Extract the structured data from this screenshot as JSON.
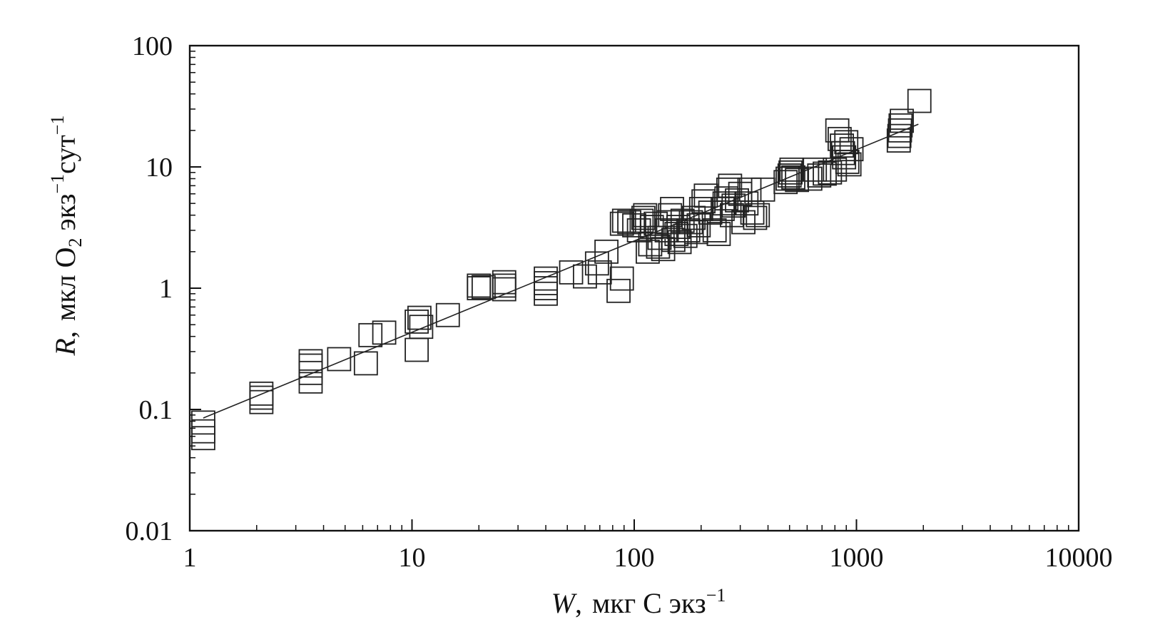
{
  "chart_data": {
    "type": "scatter",
    "xscale": "log",
    "yscale": "log",
    "xlim": [
      1,
      10000
    ],
    "ylim": [
      0.01,
      100
    ],
    "grid": false,
    "legend": "none",
    "x_ticks": [
      1,
      10,
      100,
      1000,
      10000
    ],
    "x_tick_labels": [
      "1",
      "10",
      "100",
      "1000",
      "10000"
    ],
    "y_ticks": [
      0.01,
      0.1,
      1,
      10,
      100
    ],
    "y_tick_labels": [
      "0.01",
      "0.1",
      "1",
      "10",
      "100"
    ],
    "xlabel": {
      "var": "W",
      "sep": ",",
      "text": "мкг С экз",
      "sup": "−1"
    },
    "ylabel": {
      "var": "R",
      "sep": ",",
      "t1": "мкл О",
      "sub": "2",
      "t2": " экз",
      "sup1": "−1",
      "t3": "сут",
      "sup2": "−1"
    },
    "marker": "open-square",
    "marker_color": "#222222",
    "fit_line": {
      "x": [
        1.15,
        1900
      ],
      "y": [
        0.085,
        22.5
      ],
      "color": "#222222"
    },
    "points": [
      [
        1.15,
        0.058
      ],
      [
        1.15,
        0.066
      ],
      [
        1.15,
        0.078
      ],
      [
        2.1,
        0.115
      ],
      [
        2.1,
        0.125
      ],
      [
        2.1,
        0.135
      ],
      [
        3.5,
        0.17
      ],
      [
        3.5,
        0.2
      ],
      [
        3.5,
        0.23
      ],
      [
        3.5,
        0.25
      ],
      [
        4.7,
        0.26
      ],
      [
        6.2,
        0.24
      ],
      [
        6.5,
        0.41
      ],
      [
        7.5,
        0.43
      ],
      [
        10.5,
        0.31
      ],
      [
        10.5,
        0.53
      ],
      [
        10.8,
        0.57
      ],
      [
        11,
        0.48
      ],
      [
        14.5,
        0.6
      ],
      [
        20,
        1.0
      ],
      [
        20,
        1.05
      ],
      [
        21,
        1.02
      ],
      [
        26,
        0.98
      ],
      [
        26,
        1.05
      ],
      [
        26,
        1.12
      ],
      [
        40,
        0.9
      ],
      [
        40,
        1.0
      ],
      [
        40,
        1.1
      ],
      [
        40,
        1.2
      ],
      [
        52,
        1.35
      ],
      [
        60,
        1.25
      ],
      [
        68,
        1.6
      ],
      [
        70,
        1.35
      ],
      [
        75,
        2.0
      ],
      [
        85,
        0.95
      ],
      [
        88,
        1.2
      ],
      [
        88,
        3.4
      ],
      [
        90,
        3.6
      ],
      [
        95,
        3.5
      ],
      [
        100,
        3.3
      ],
      [
        105,
        3.0
      ],
      [
        108,
        3.6
      ],
      [
        110,
        3.8
      ],
      [
        112,
        4.0
      ],
      [
        115,
        2.0
      ],
      [
        118,
        2.3
      ],
      [
        120,
        3.2
      ],
      [
        125,
        3.4
      ],
      [
        128,
        2.2
      ],
      [
        130,
        2.6
      ],
      [
        135,
        2.1
      ],
      [
        140,
        3.0
      ],
      [
        142,
        3.5
      ],
      [
        145,
        4.0
      ],
      [
        148,
        4.5
      ],
      [
        150,
        2.5
      ],
      [
        155,
        2.8
      ],
      [
        158,
        3.2
      ],
      [
        160,
        2.4
      ],
      [
        165,
        3.6
      ],
      [
        170,
        2.7
      ],
      [
        175,
        3.0
      ],
      [
        180,
        3.5
      ],
      [
        185,
        3.8
      ],
      [
        190,
        2.9
      ],
      [
        195,
        3.3
      ],
      [
        200,
        4.5
      ],
      [
        205,
        5.2
      ],
      [
        210,
        5.8
      ],
      [
        220,
        4.2
      ],
      [
        230,
        3.0
      ],
      [
        240,
        2.8
      ],
      [
        250,
        4.5
      ],
      [
        255,
        5.0
      ],
      [
        260,
        5.5
      ],
      [
        265,
        6.5
      ],
      [
        270,
        7.0
      ],
      [
        275,
        4.0
      ],
      [
        280,
        4.8
      ],
      [
        290,
        5.3
      ],
      [
        300,
        6.0
      ],
      [
        310,
        3.5
      ],
      [
        320,
        5.0
      ],
      [
        330,
        6.5
      ],
      [
        340,
        4.2
      ],
      [
        350,
        3.8
      ],
      [
        360,
        4.0
      ],
      [
        380,
        6.5
      ],
      [
        480,
        7.5
      ],
      [
        490,
        8.0
      ],
      [
        500,
        8.5
      ],
      [
        505,
        9.0
      ],
      [
        510,
        9.5
      ],
      [
        520,
        8.2
      ],
      [
        540,
        7.8
      ],
      [
        620,
        8.0
      ],
      [
        650,
        9.5
      ],
      [
        680,
        8.5
      ],
      [
        720,
        8.8
      ],
      [
        760,
        9.0
      ],
      [
        800,
        9.5
      ],
      [
        820,
        20.0
      ],
      [
        840,
        17.0
      ],
      [
        860,
        15.0
      ],
      [
        870,
        13.0
      ],
      [
        880,
        12.0
      ],
      [
        900,
        16.0
      ],
      [
        910,
        11.0
      ],
      [
        930,
        10.5
      ],
      [
        950,
        14.0
      ],
      [
        1550,
        16.5
      ],
      [
        1560,
        18.0
      ],
      [
        1570,
        20.0
      ],
      [
        1580,
        22.0
      ],
      [
        1600,
        24.0
      ],
      [
        1920,
        35.0
      ]
    ]
  }
}
